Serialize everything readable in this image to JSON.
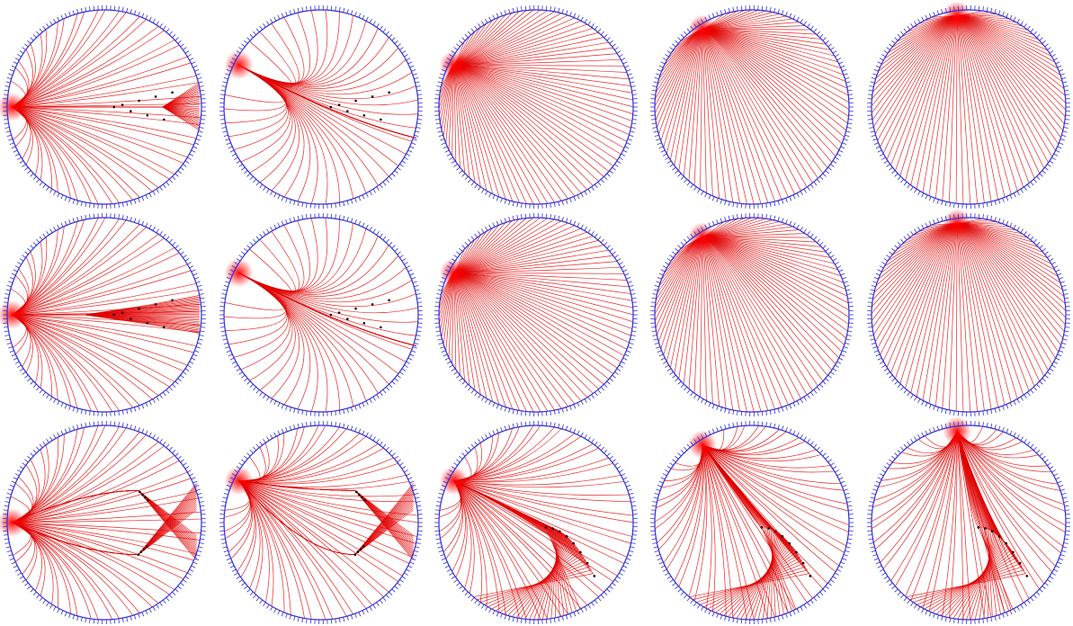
{
  "figure": {
    "rows": 3,
    "columns": 5,
    "boundary_color": "#2f2fd8",
    "ray_color": "#e00000",
    "focus_color": "#ff0000",
    "caustic_point_color": "#000000",
    "background_color": "#ffffff",
    "boundary_tick_count": 150,
    "rays_per_panel": 80
  },
  "panels": [
    {
      "id": "r1c1",
      "source": "left",
      "pattern": "pinch-right"
    },
    {
      "id": "r1c2",
      "source": "upper-left",
      "pattern": "converge-right"
    },
    {
      "id": "r1c3",
      "source": "upper-left",
      "pattern": "fan"
    },
    {
      "id": "r1c4",
      "source": "top-left",
      "pattern": "fan"
    },
    {
      "id": "r1c5",
      "source": "top",
      "pattern": "fan"
    },
    {
      "id": "r2c1",
      "source": "left",
      "pattern": "double-pinch"
    },
    {
      "id": "r2c2",
      "source": "upper-left",
      "pattern": "converge-right"
    },
    {
      "id": "r2c3",
      "source": "upper-left",
      "pattern": "fan"
    },
    {
      "id": "r2c4",
      "source": "top-left",
      "pattern": "fan"
    },
    {
      "id": "r2c5",
      "source": "top",
      "pattern": "fan"
    },
    {
      "id": "r3c1",
      "source": "left",
      "pattern": "twin-cusp"
    },
    {
      "id": "r3c2",
      "source": "upper-left",
      "pattern": "twin-cusp"
    },
    {
      "id": "r3c3",
      "source": "upper-left",
      "pattern": "lens"
    },
    {
      "id": "r3c4",
      "source": "top-left",
      "pattern": "lens"
    },
    {
      "id": "r3c5",
      "source": "top",
      "pattern": "lens"
    }
  ]
}
